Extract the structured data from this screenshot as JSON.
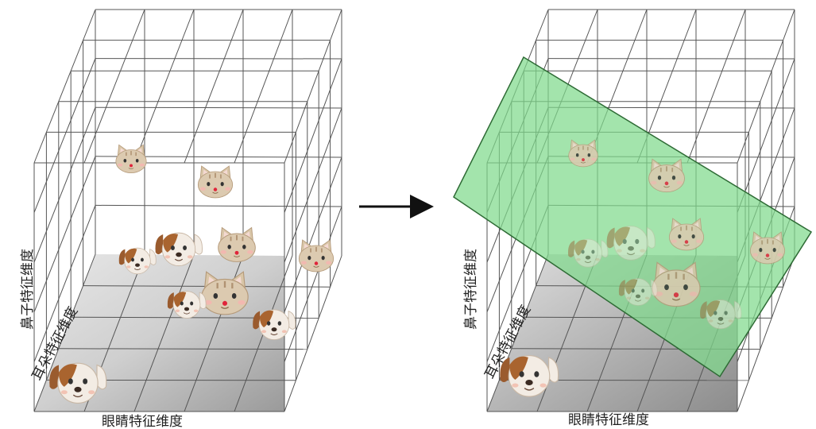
{
  "left_panel": {
    "x_axis_label": "眼睛特征维度",
    "y_axis_label": "鼻子特征维度",
    "z_axis_label": "耳朵特征维度"
  },
  "right_panel": {
    "x_axis_label": "眼睛特征维度",
    "y_axis_label": "鼻子特征维度",
    "z_axis_label": "耳朵特征维度"
  },
  "colors": {
    "plane_fill": "#7fd98c",
    "grid": "#555555",
    "cat": "#d9c6a8",
    "dog_white": "#f3ece4",
    "dog_brown": "#9a5b2e"
  },
  "icons": {
    "arrow": "arrow-right-icon",
    "cat": "cat-face-icon",
    "dog": "dog-face-icon"
  }
}
